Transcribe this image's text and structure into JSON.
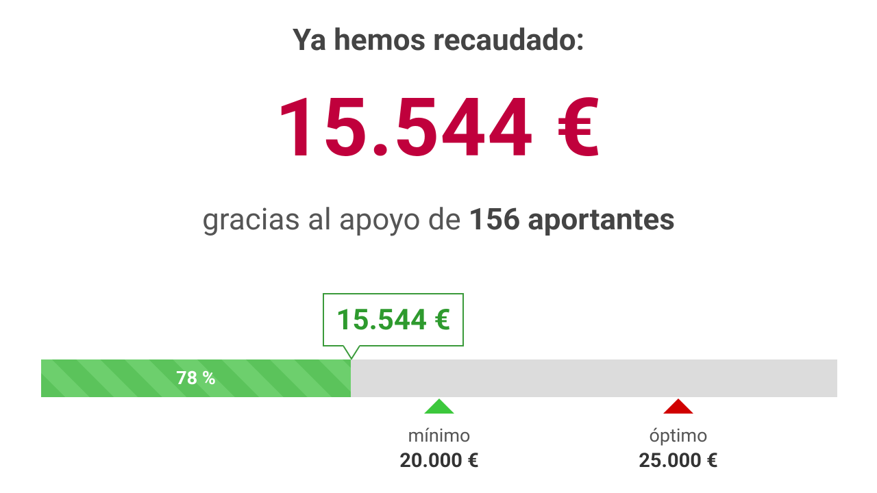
{
  "header": {
    "title": "Ya hemos recaudado:",
    "amount": "15.544 €",
    "thanks": "gracias al apoyo de",
    "backers": "156 aportantes"
  },
  "progress": {
    "bubble": "15.544 €",
    "percent": "78 %",
    "milestones": [
      {
        "label": "mínimo",
        "amount": "20.000 €"
      },
      {
        "label": "óptimo",
        "amount": "25.000 €"
      }
    ]
  }
}
